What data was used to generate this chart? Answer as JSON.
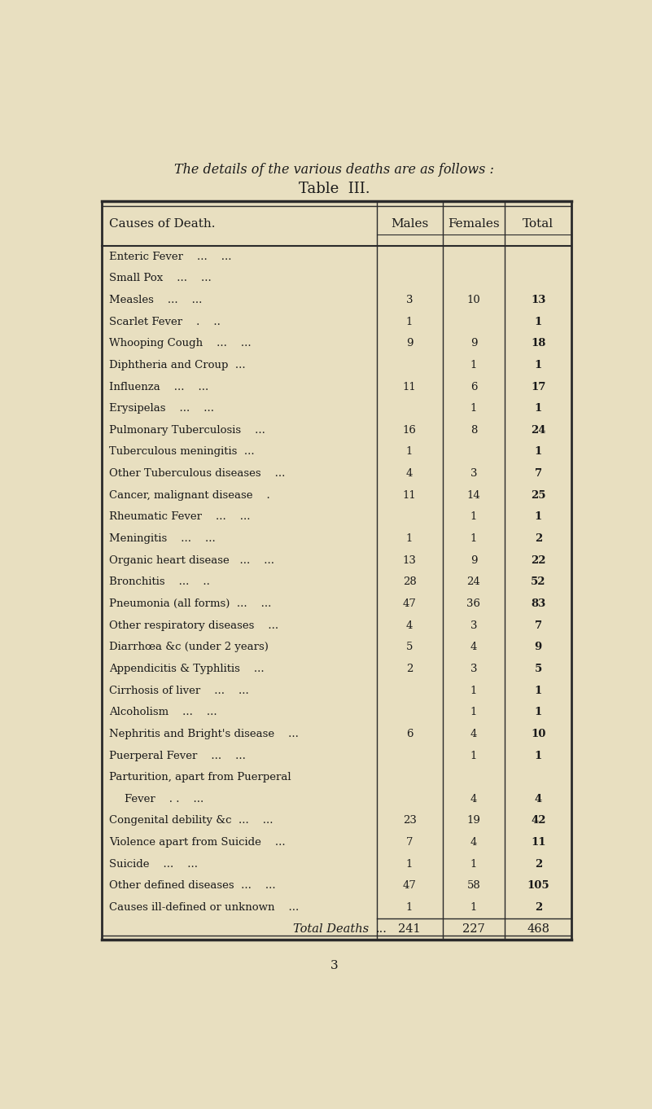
{
  "title_line1": "The details of the various deaths are as follows :",
  "title_line2": "Table  III.",
  "header": [
    "Causes of Death.",
    "Males",
    "Females",
    "Total"
  ],
  "rows": [
    [
      "Enteric Fever    ...    ...",
      "",
      "",
      ""
    ],
    [
      "Small Pox    ...    ...",
      "",
      "",
      ""
    ],
    [
      "Measles    ...    ...",
      "3",
      "10",
      "13"
    ],
    [
      "Scarlet Fever    .    ..",
      "1",
      "",
      "1"
    ],
    [
      "Whooping Cough    ...    ...",
      "9",
      "9",
      "18"
    ],
    [
      "Diphtheria and Croup  ...",
      "",
      "1",
      "1"
    ],
    [
      "Influenza    ...    ...",
      "11",
      "6",
      "17"
    ],
    [
      "Erysipelas    ...    ...",
      "",
      "1",
      "1"
    ],
    [
      "Pulmonary Tuberculosis    ...",
      "16",
      "8",
      "24"
    ],
    [
      "Tuberculous meningitis  ...",
      "1",
      "",
      "1"
    ],
    [
      "Other Tuberculous diseases    ...",
      "4",
      "3",
      "7"
    ],
    [
      "Cancer, malignant disease    .",
      "11",
      "14",
      "25"
    ],
    [
      "Rheumatic Fever    ...    ...",
      "",
      "1",
      "1"
    ],
    [
      "Meningitis    ...    ...",
      "1",
      "1",
      "2"
    ],
    [
      "Organic heart disease   ...    ...",
      "13",
      "9",
      "22"
    ],
    [
      "Bronchitis    ...    ..",
      "28",
      "24",
      "52"
    ],
    [
      "Pneumonia (all forms)  ...    ...",
      "47",
      "36",
      "83"
    ],
    [
      "Other respiratory diseases    ...",
      "4",
      "3",
      "7"
    ],
    [
      "Diarrhœa &c (under 2 years)",
      "5",
      "4",
      "9"
    ],
    [
      "Appendicitis & Typhlitis    ...",
      "2",
      "3",
      "5"
    ],
    [
      "Cirrhosis of liver    ...    ...",
      "",
      "1",
      "1"
    ],
    [
      "Alcoholism    ...    ...",
      "",
      "1",
      "1"
    ],
    [
      "Nephritis and Bright's disease    ...",
      "6",
      "4",
      "10"
    ],
    [
      "Puerperal Fever    ...    ...",
      "",
      "1",
      "1"
    ],
    [
      "Parturition, apart from Puerperal",
      "",
      "",
      ""
    ],
    [
      "    Fever    . .    ...",
      "",
      "4",
      "4"
    ],
    [
      "Congenital debility &c  ...    ...",
      "23",
      "19",
      "42"
    ],
    [
      "Violence apart from Suicide    ...",
      "7",
      "4",
      "11"
    ],
    [
      "Suicide    ...    ...",
      "1",
      "1",
      "2"
    ],
    [
      "Other defined diseases  ...    ...",
      "47",
      "58",
      "105"
    ],
    [
      "Causes ill-defined or unknown    ...",
      "1",
      "1",
      "2"
    ]
  ],
  "total_row": [
    "Total Deaths    ...",
    "241",
    "227",
    "468"
  ],
  "page_number": "3",
  "bg_color": "#e8dfc0",
  "text_color": "#1a1a1a",
  "table_bg": "#e8dfc0"
}
